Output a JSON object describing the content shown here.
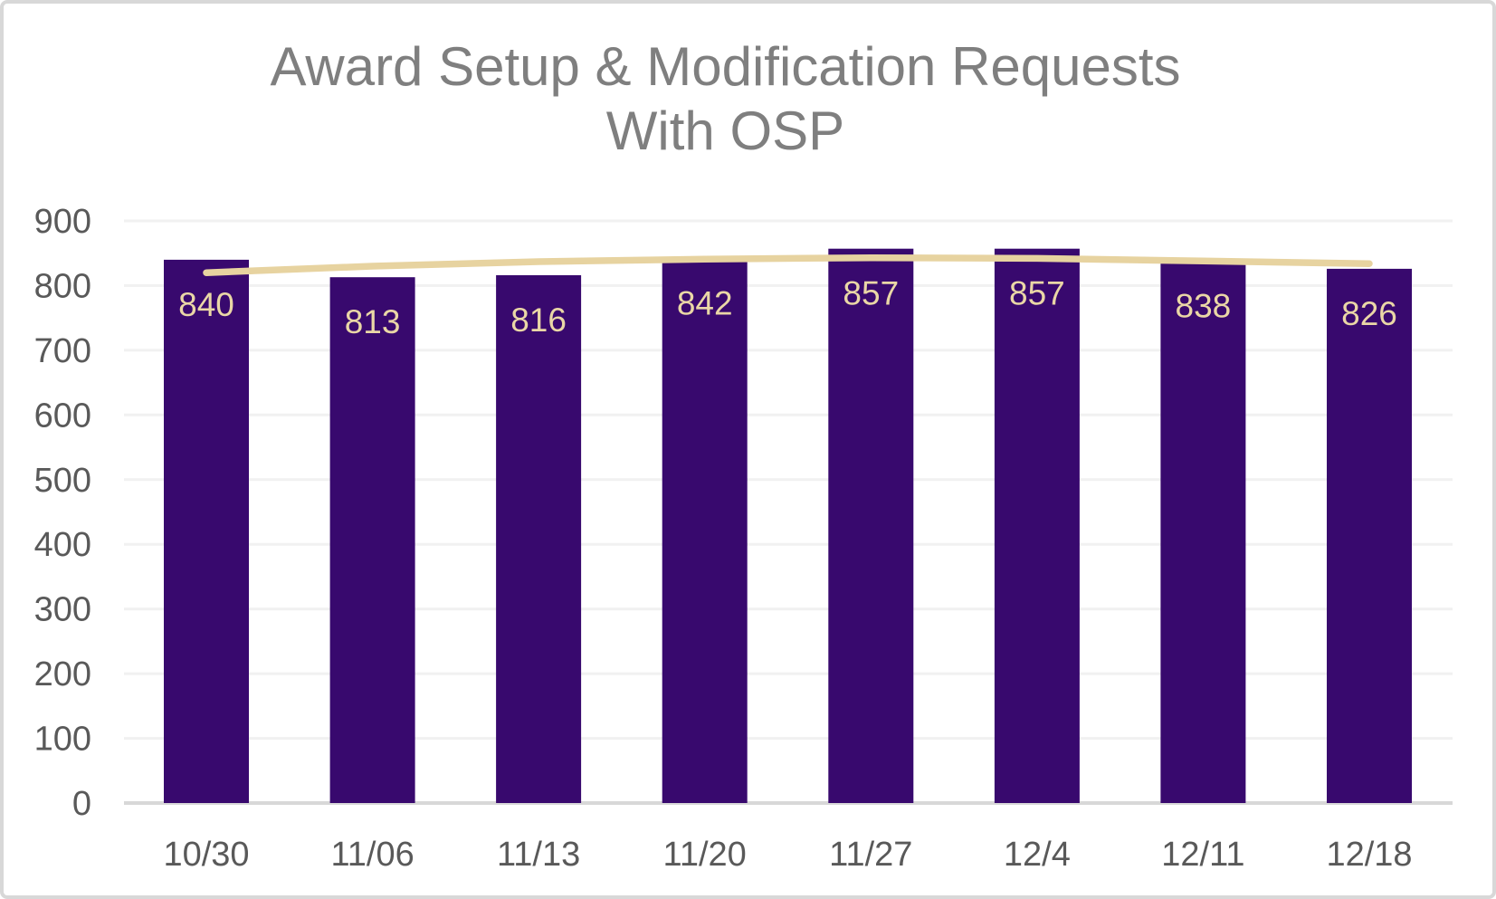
{
  "card": {
    "background": "#FFFFFF",
    "border_color": "#D8D8D8"
  },
  "chart_data": {
    "type": "bar",
    "title_lines": [
      "Award Setup & Modification Requests",
      "With OSP"
    ],
    "title": "Award Setup & Modification Requests With OSP",
    "categories": [
      "10/30",
      "11/06",
      "11/13",
      "11/20",
      "11/27",
      "12/4",
      "12/11",
      "12/18"
    ],
    "values": [
      840,
      813,
      816,
      842,
      857,
      857,
      838,
      826
    ],
    "data_labels": [
      "840",
      "813",
      "816",
      "842",
      "857",
      "857",
      "838",
      "826"
    ],
    "trend_line_values": [
      820,
      830,
      837,
      841,
      843,
      842,
      838,
      834
    ],
    "ylim": [
      0,
      900
    ],
    "yticks": [
      0,
      100,
      200,
      300,
      400,
      500,
      600,
      700,
      800,
      900
    ],
    "grid": true,
    "legend": "none",
    "colors": {
      "bar": "#38096E",
      "trend_line": "#E7D3A0",
      "data_label": "#EAD7A6",
      "title": "#7F7F7F",
      "axis_label": "#595959",
      "gridline": "#F1F1F1",
      "axis_line": "#D8D8D8"
    }
  }
}
